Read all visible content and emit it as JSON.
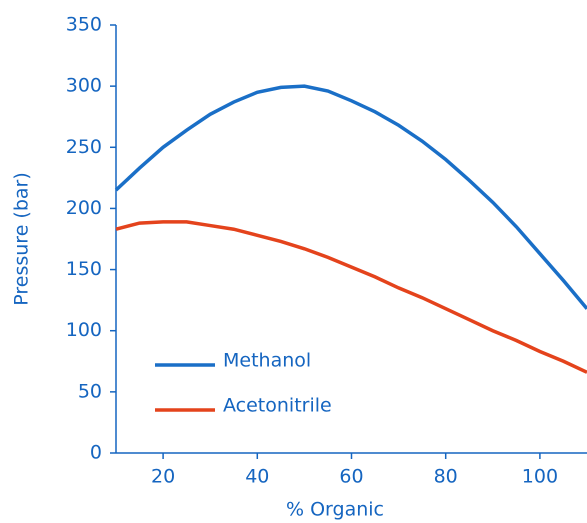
{
  "chart_data": {
    "type": "line",
    "x_label": "% Organic",
    "y_label": "Pressure (bar)",
    "x": [
      10,
      15,
      20,
      25,
      30,
      35,
      40,
      45,
      50,
      55,
      60,
      65,
      70,
      75,
      80,
      85,
      90,
      95,
      100,
      105,
      110
    ],
    "series": [
      {
        "name": "Methanol",
        "color": "#1a6fc7",
        "values": [
          215,
          233,
          250,
          264,
          277,
          287,
          295,
          299,
          300,
          296,
          288,
          279,
          268,
          255,
          240,
          223,
          205,
          185,
          163,
          141,
          118
        ]
      },
      {
        "name": "Acetonitrile",
        "color": "#e4431c",
        "values": [
          183,
          188,
          189,
          189,
          186,
          183,
          178,
          173,
          167,
          160,
          152,
          144,
          135,
          127,
          118,
          109,
          100,
          92,
          83,
          75,
          66
        ]
      }
    ],
    "xlim": [
      10,
      110
    ],
    "xticks": [
      20,
      40,
      60,
      80,
      100
    ],
    "ylim": [
      0,
      350
    ],
    "yticks": [
      0,
      50,
      100,
      150,
      200,
      250,
      300,
      350
    ]
  }
}
